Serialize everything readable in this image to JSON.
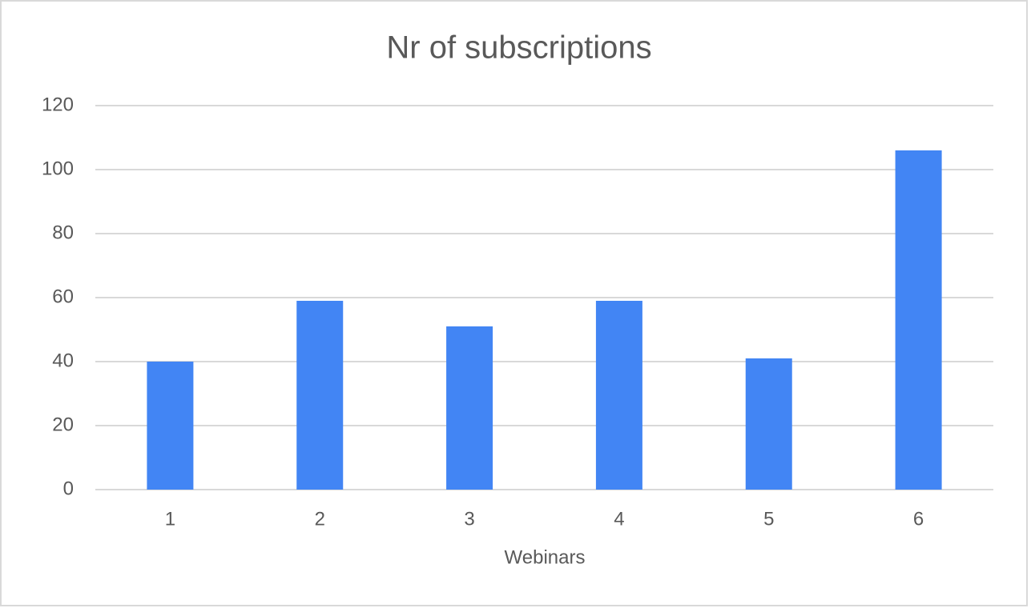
{
  "chart_data": {
    "type": "bar",
    "title": "Nr of subscriptions",
    "x_label": "Webinars",
    "categories": [
      "1",
      "2",
      "3",
      "4",
      "5",
      "6"
    ],
    "values": [
      40,
      59,
      51,
      59,
      41,
      106
    ],
    "color": "#4285f4",
    "ylim": [
      0,
      120
    ],
    "yticks": [
      0,
      20,
      40,
      60,
      80,
      100,
      120
    ],
    "grid": true
  }
}
